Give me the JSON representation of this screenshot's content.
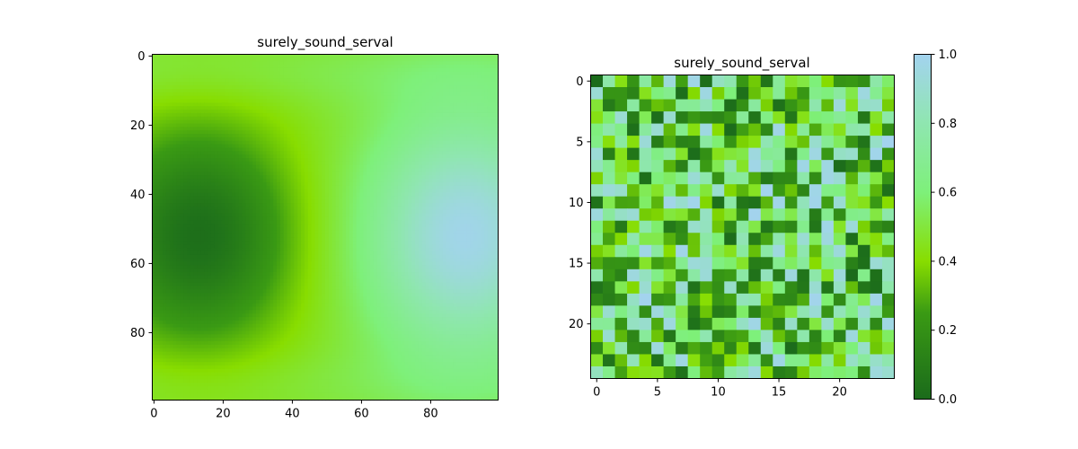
{
  "chart_data": [
    {
      "type": "heatmap",
      "title": "surely_sound_serval",
      "shape": [
        100,
        100
      ],
      "description_of_values": "smooth field: low trough centered near x=13,y=52; high peak near x=90,y=52",
      "x_ticks": [
        0,
        20,
        40,
        60,
        80
      ],
      "y_ticks": [
        0,
        20,
        40,
        60,
        80
      ],
      "xlim": [
        -0.5,
        99.5
      ],
      "ylim": [
        99.5,
        -0.5
      ],
      "field": {
        "low_center": [
          13,
          52
        ],
        "high_center": [
          90,
          52
        ]
      },
      "colorbar": false
    },
    {
      "type": "heatmap",
      "title": "surely_sound_serval",
      "shape": [
        25,
        25
      ],
      "x_ticks": [
        0,
        5,
        10,
        15,
        20
      ],
      "y_ticks": [
        0,
        5,
        10,
        15,
        20
      ],
      "xlim": [
        -0.5,
        24.5
      ],
      "ylim": [
        24.5,
        -0.5
      ],
      "value_range": [
        0.0,
        1.0
      ],
      "colorbar": true,
      "colorbar_ticks": [
        0.0,
        0.2,
        0.4,
        0.6,
        0.8,
        1.0
      ],
      "colorbar_tick_labels": [
        "0.0",
        "0.2",
        "0.4",
        "0.6",
        "0.8",
        "1.0"
      ]
    }
  ],
  "colormap": {
    "stops": [
      {
        "value": 0.0,
        "color": "#1b6b1b"
      },
      {
        "value": 0.25,
        "color": "#3a9a14"
      },
      {
        "value": 0.4,
        "color": "#88dd00"
      },
      {
        "value": 0.6,
        "color": "#7ef07a"
      },
      {
        "value": 0.8,
        "color": "#8fe6b0"
      },
      {
        "value": 1.0,
        "color": "#a3d3ef"
      }
    ]
  }
}
